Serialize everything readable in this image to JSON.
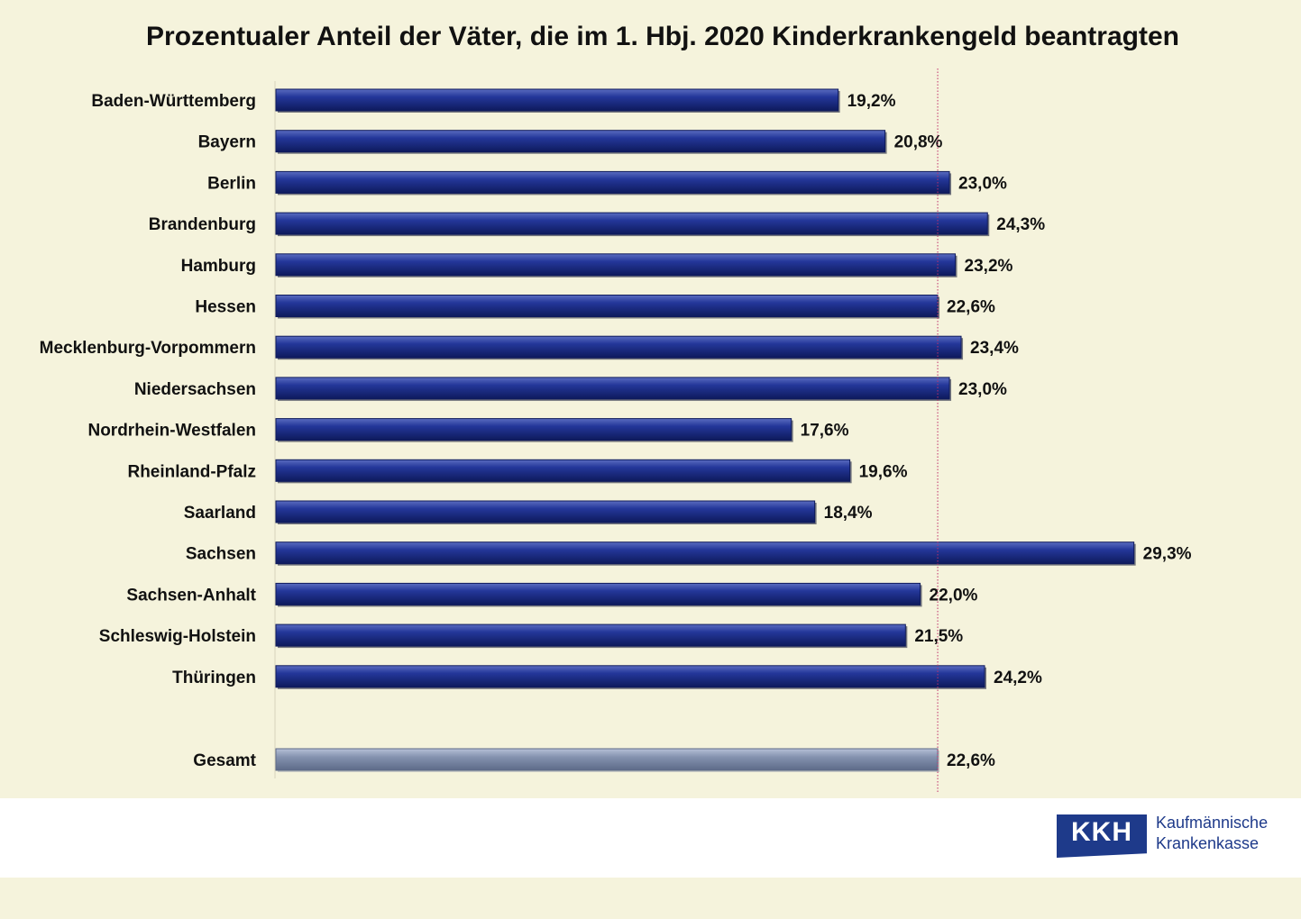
{
  "chart_data": {
    "type": "bar",
    "orientation": "horizontal",
    "title": "Prozentualer Anteil der Väter, die im 1. Hbj. 2020 Kinderkrankengeld beantragten",
    "categories": [
      "Baden-Württemberg",
      "Bayern",
      "Berlin",
      "Brandenburg",
      "Hamburg",
      "Hessen",
      "Mecklenburg-Vorpommern",
      "Niedersachsen",
      "Nordrhein-Westfalen",
      "Rheinland-Pfalz",
      "Saarland",
      "Sachsen",
      "Sachsen-Anhalt",
      "Schleswig-Holstein",
      "Thüringen"
    ],
    "values": [
      19.2,
      20.8,
      23.0,
      24.3,
      23.2,
      22.6,
      23.4,
      23.0,
      17.6,
      19.6,
      18.4,
      29.3,
      22.0,
      21.5,
      24.2
    ],
    "value_labels": [
      "19,2%",
      "20,8%",
      "23,0%",
      "24,3%",
      "23,2%",
      "22,6%",
      "23,4%",
      "23,0%",
      "17,6%",
      "19,6%",
      "18,4%",
      "29,3%",
      "22,0%",
      "21,5%",
      "24,2%"
    ],
    "total": {
      "label": "Gesamt",
      "value": 22.6,
      "value_label": "22,6%"
    },
    "reference_line": 22.6,
    "xlim": [
      0,
      29.3
    ],
    "grid": false,
    "colors": {
      "bars": "#1a2a7c",
      "total_bar": "#7f8ca8",
      "reference_line": "#c0306a",
      "background": "#f5f3dc"
    }
  },
  "logo": {
    "mark": "KKH",
    "line1": "Kaufmännische",
    "line2": "Krankenkasse"
  }
}
